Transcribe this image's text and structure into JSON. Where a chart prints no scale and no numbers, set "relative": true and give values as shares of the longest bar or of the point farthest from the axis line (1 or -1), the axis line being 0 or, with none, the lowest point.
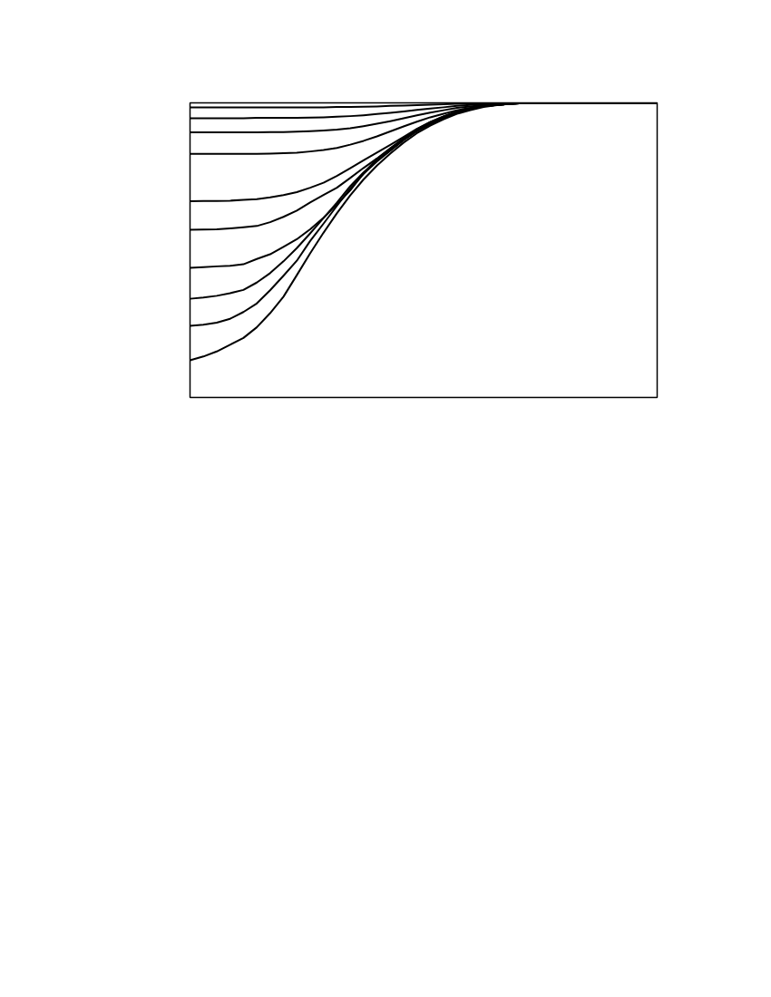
{
  "chart_data": {
    "type": "line",
    "relative": true,
    "categories": [
      null,
      null,
      null,
      null,
      null,
      null,
      null,
      null,
      null,
      null,
      null,
      null,
      null,
      null,
      null,
      null,
      null,
      null,
      null,
      null,
      null,
      null,
      null,
      null,
      null,
      null,
      null,
      null,
      null,
      null,
      null,
      null,
      null,
      null,
      null,
      null
    ],
    "series": [
      {
        "color": "#000000",
        "values": [
          0.985,
          0.985,
          0.985,
          0.985,
          0.985,
          0.985,
          0.985,
          0.985,
          0.985,
          0.985,
          0.985,
          0.986,
          0.986,
          0.987,
          0.988,
          0.99,
          0.991,
          0.992,
          0.994,
          0.995,
          0.997,
          0.998,
          0.999,
          0.999,
          1,
          1,
          1,
          1,
          1,
          1,
          1,
          1,
          1,
          1,
          1,
          1
        ]
      },
      {
        "color": "#000000",
        "values": [
          0.948,
          0.948,
          0.948,
          0.948,
          0.948,
          0.949,
          0.949,
          0.949,
          0.949,
          0.95,
          0.951,
          0.953,
          0.955,
          0.958,
          0.962,
          0.966,
          0.971,
          0.976,
          0.981,
          0.985,
          0.99,
          0.993,
          0.996,
          0.998,
          0.999,
          1,
          1,
          1,
          1,
          1,
          1,
          1,
          1,
          1,
          1,
          1
        ]
      },
      {
        "color": "#000000",
        "values": [
          0.9,
          0.9,
          0.9,
          0.9,
          0.9,
          0.9,
          0.901,
          0.901,
          0.902,
          0.904,
          0.906,
          0.909,
          0.914,
          0.921,
          0.929,
          0.938,
          0.948,
          0.958,
          0.967,
          0.975,
          0.983,
          0.988,
          0.993,
          0.996,
          0.998,
          0.999,
          1,
          1,
          1,
          1,
          1,
          1,
          1,
          1,
          1,
          1
        ]
      },
      {
        "color": "#000000",
        "values": [
          0.827,
          0.827,
          0.827,
          0.827,
          0.827,
          0.827,
          0.828,
          0.829,
          0.831,
          0.835,
          0.84,
          0.847,
          0.858,
          0.871,
          0.886,
          0.903,
          0.92,
          0.936,
          0.951,
          0.963,
          0.975,
          0.983,
          0.99,
          0.994,
          0.998,
          0.999,
          1,
          1,
          1,
          1,
          1,
          1,
          1,
          1,
          1,
          1
        ]
      },
      {
        "color": "#000000",
        "values": [
          0.666,
          0.667,
          0.667,
          0.668,
          0.671,
          0.673,
          0.679,
          0.687,
          0.697,
          0.712,
          0.729,
          0.752,
          0.778,
          0.805,
          0.831,
          0.857,
          0.884,
          0.912,
          0.935,
          0.954,
          0.971,
          0.98,
          0.989,
          0.993,
          0.997,
          0.999,
          1,
          1,
          1,
          1,
          1,
          1,
          1,
          1,
          1,
          1
        ]
      },
      {
        "color": "#000000",
        "values": [
          0.569,
          0.57,
          0.571,
          0.574,
          0.578,
          0.582,
          0.595,
          0.613,
          0.634,
          0.662,
          0.687,
          0.712,
          0.745,
          0.779,
          0.811,
          0.846,
          0.88,
          0.91,
          0.935,
          0.954,
          0.971,
          0.98,
          0.989,
          0.993,
          0.997,
          0.999,
          1,
          1,
          1,
          1,
          1,
          1,
          1,
          1,
          1,
          1
        ]
      },
      {
        "color": "#000000",
        "values": [
          0.44,
          0.442,
          0.445,
          0.447,
          0.452,
          0.47,
          0.486,
          0.511,
          0.537,
          0.571,
          0.61,
          0.655,
          0.703,
          0.76,
          0.81,
          0.844,
          0.877,
          0.907,
          0.932,
          0.951,
          0.969,
          0.979,
          0.989,
          0.993,
          0.997,
          0.999,
          1,
          1,
          1,
          1,
          1,
          1,
          1,
          1,
          1,
          1
        ]
      },
      {
        "color": "#000000",
        "values": [
          0.335,
          0.339,
          0.345,
          0.354,
          0.365,
          0.39,
          0.422,
          0.462,
          0.507,
          0.557,
          0.609,
          0.661,
          0.717,
          0.764,
          0.804,
          0.838,
          0.874,
          0.904,
          0.929,
          0.948,
          0.966,
          0.978,
          0.989,
          0.993,
          0.997,
          0.999,
          1,
          1,
          1,
          1,
          1,
          1,
          1,
          1,
          1,
          1
        ]
      },
      {
        "color": "#000000",
        "values": [
          0.243,
          0.247,
          0.254,
          0.267,
          0.29,
          0.319,
          0.364,
          0.413,
          0.464,
          0.531,
          0.59,
          0.65,
          0.709,
          0.759,
          0.801,
          0.838,
          0.874,
          0.904,
          0.929,
          0.948,
          0.966,
          0.978,
          0.989,
          0.993,
          0.997,
          0.999,
          1,
          1,
          1,
          1,
          1,
          1,
          1,
          1,
          1,
          1
        ]
      },
      {
        "color": "#000000",
        "values": [
          0.126,
          0.139,
          0.156,
          0.179,
          0.202,
          0.238,
          0.286,
          0.342,
          0.415,
          0.489,
          0.559,
          0.625,
          0.686,
          0.74,
          0.787,
          0.828,
          0.865,
          0.897,
          0.923,
          0.944,
          0.963,
          0.975,
          0.986,
          0.992,
          0.997,
          0.999,
          1,
          1,
          1,
          1,
          1,
          1,
          1,
          1,
          1,
          1
        ]
      }
    ]
  }
}
